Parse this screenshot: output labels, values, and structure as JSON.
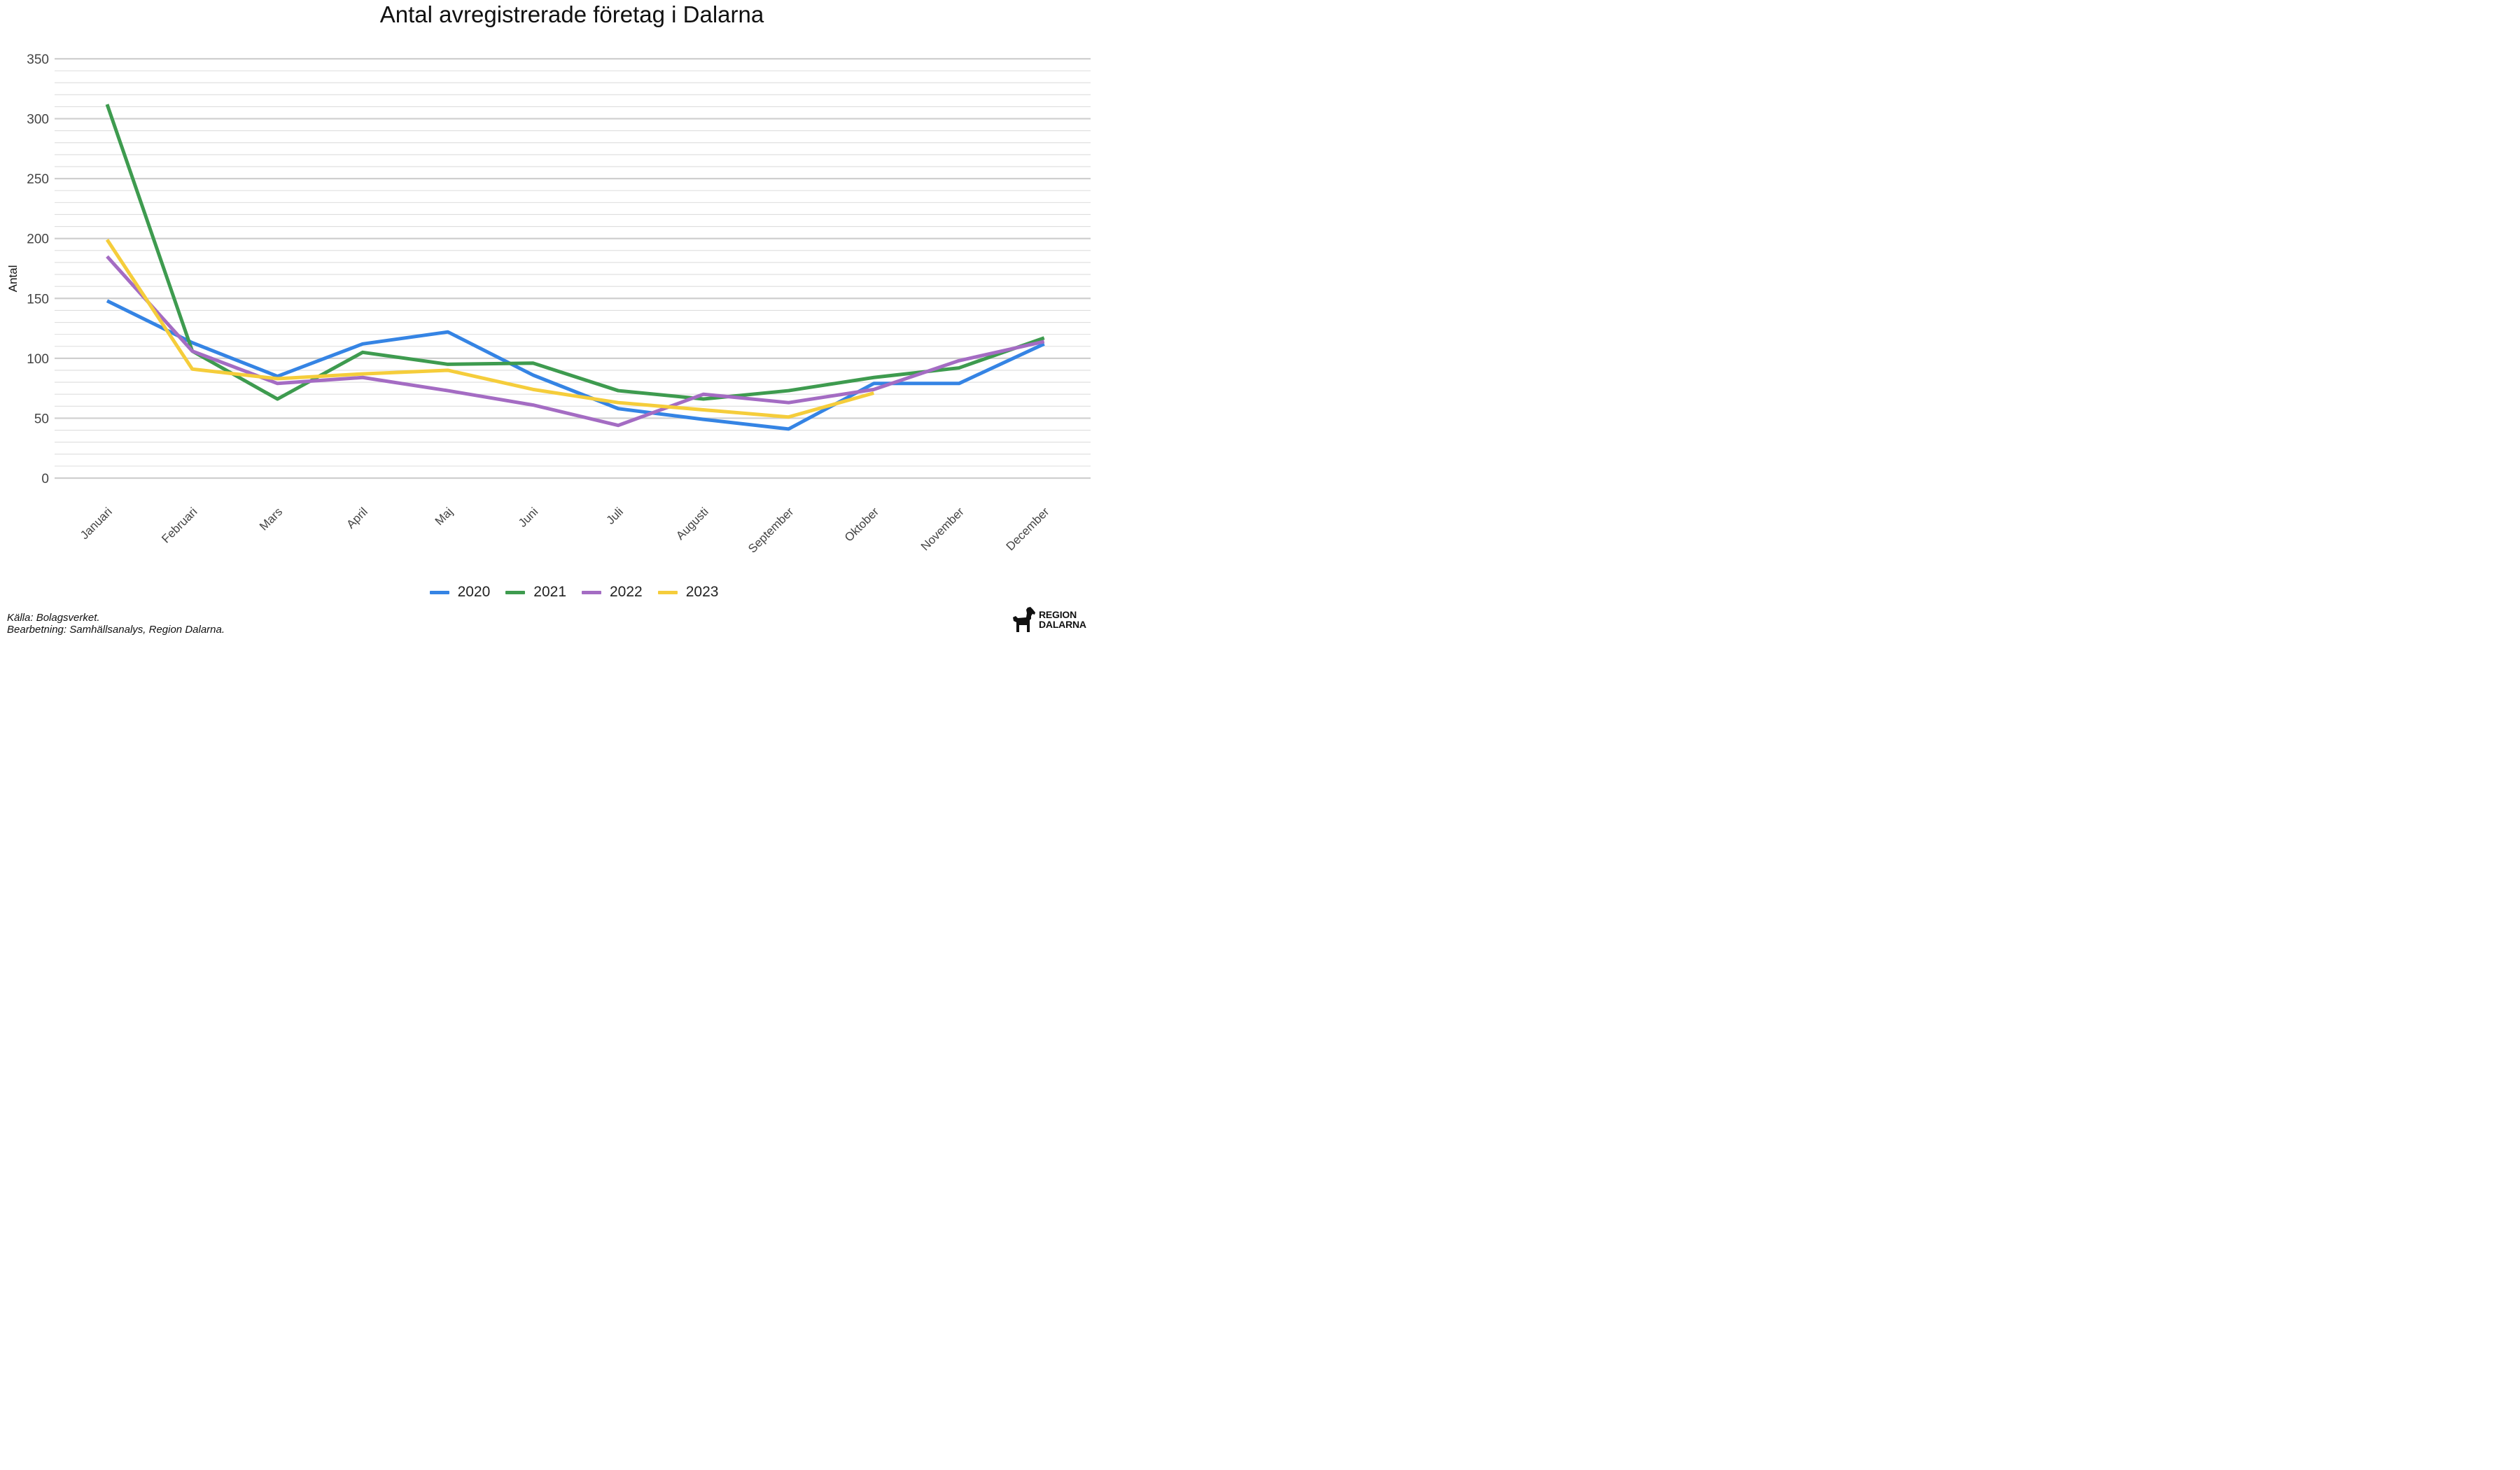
{
  "chart_data": {
    "type": "line",
    "title": "Antal avregistrerade företag i Dalarna",
    "xlabel": "",
    "ylabel": "Antal",
    "categories": [
      "Januari",
      "Februari",
      "Mars",
      "April",
      "Maj",
      "Juni",
      "Juli",
      "Augusti",
      "September",
      "Oktober",
      "November",
      "December"
    ],
    "ylim": [
      0,
      350
    ],
    "yticks": [
      0,
      50,
      100,
      150,
      200,
      250,
      300,
      350
    ],
    "grid": true,
    "legend_position": "bottom",
    "series": [
      {
        "name": "2020",
        "color": "#3584E4",
        "values": [
          148,
          113,
          85,
          112,
          122,
          86,
          58,
          49,
          41,
          79,
          79,
          112
        ]
      },
      {
        "name": "2021",
        "color": "#3E9B4F",
        "values": [
          312,
          106,
          66,
          105,
          95,
          96,
          73,
          66,
          73,
          84,
          92,
          117
        ]
      },
      {
        "name": "2022",
        "color": "#A46CC3",
        "values": [
          185,
          106,
          79,
          84,
          73,
          61,
          44,
          70,
          63,
          74,
          98,
          114
        ]
      },
      {
        "name": "2023",
        "color": "#F5CD3B",
        "values": [
          199,
          91,
          83,
          87,
          90,
          74,
          63,
          57,
          51,
          71,
          null,
          null
        ]
      }
    ]
  },
  "caption": {
    "source": "Källa: Bolagsverket.",
    "processing": "Bearbetning: Samhällsanalys, Region Dalarna."
  },
  "logo": {
    "line1": "REGION",
    "line2": "DALARNA",
    "icon": "dala-horse-icon"
  }
}
